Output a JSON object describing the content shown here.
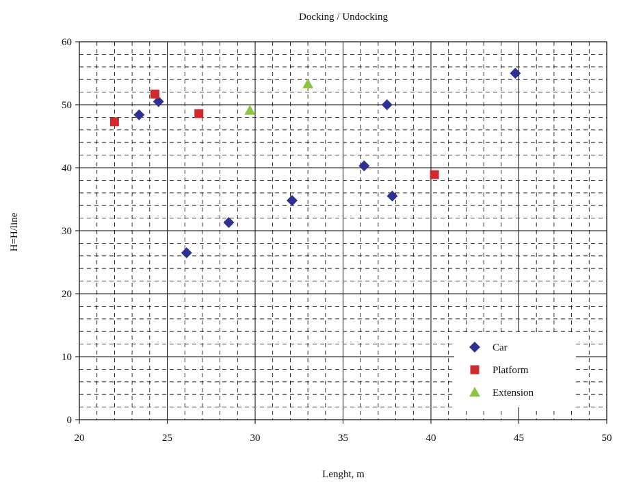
{
  "chart_data": {
    "type": "scatter",
    "title": "Docking / Undocking",
    "xlabel": "Lenght, m",
    "ylabel": "H=H/line",
    "xlim": [
      20,
      50
    ],
    "ylim": [
      0,
      60
    ],
    "xticks": [
      "20",
      "25",
      "30",
      "35",
      "40",
      "45",
      "50"
    ],
    "yticks": [
      "0",
      "10",
      "20",
      "30",
      "40",
      "50",
      "60"
    ],
    "grid": true,
    "legend_position": "bottom-right",
    "series": [
      {
        "name": "Car",
        "marker": "diamond",
        "color": "#2e3192",
        "points": [
          {
            "x": 23.4,
            "y": 48.4
          },
          {
            "x": 24.5,
            "y": 50.5
          },
          {
            "x": 26.1,
            "y": 26.5
          },
          {
            "x": 28.5,
            "y": 31.3
          },
          {
            "x": 32.1,
            "y": 34.8
          },
          {
            "x": 36.2,
            "y": 40.3
          },
          {
            "x": 37.5,
            "y": 50.0
          },
          {
            "x": 37.8,
            "y": 35.5
          },
          {
            "x": 44.8,
            "y": 55.0
          }
        ]
      },
      {
        "name": "Platform",
        "marker": "square",
        "color": "#d02a2f",
        "points": [
          {
            "x": 22.0,
            "y": 47.3
          },
          {
            "x": 24.3,
            "y": 51.7
          },
          {
            "x": 26.8,
            "y": 48.6
          },
          {
            "x": 40.2,
            "y": 38.9
          }
        ]
      },
      {
        "name": "Extension",
        "marker": "triangle",
        "color": "#8cc63f",
        "points": [
          {
            "x": 29.7,
            "y": 49.1
          },
          {
            "x": 33.0,
            "y": 53.3
          }
        ]
      }
    ]
  }
}
